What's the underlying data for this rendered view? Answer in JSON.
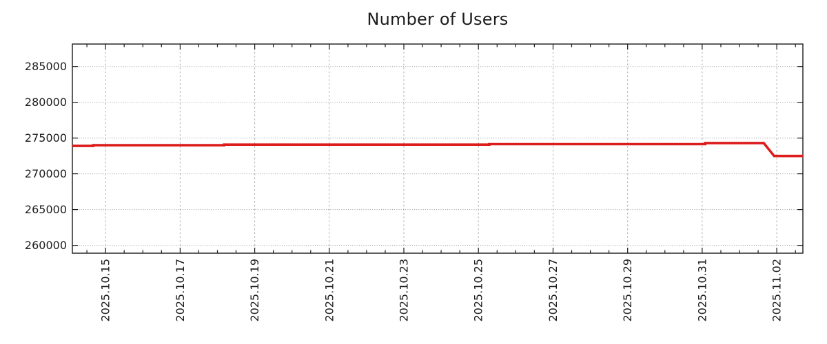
{
  "chart_data": {
    "type": "line",
    "title": "Number of Users",
    "xlabel": "",
    "ylabel": "",
    "x_unit": "days, 0 = 2025-10-14 00:00 (derived from visible date tick labels)",
    "xlim": [
      0.11,
      19.7
    ],
    "ylim": [
      258900,
      288150
    ],
    "x_major_ticks": [
      {
        "x": 1,
        "label": "2025.10.15"
      },
      {
        "x": 3,
        "label": "2025.10.17"
      },
      {
        "x": 5,
        "label": "2025.10.19"
      },
      {
        "x": 7,
        "label": "2025.10.21"
      },
      {
        "x": 9,
        "label": "2025.10.23"
      },
      {
        "x": 11,
        "label": "2025.10.25"
      },
      {
        "x": 13,
        "label": "2025.10.27"
      },
      {
        "x": 15,
        "label": "2025.10.29"
      },
      {
        "x": 17,
        "label": "2025.10.31"
      },
      {
        "x": 19,
        "label": "2025.11.02"
      }
    ],
    "x_minor_step": 0.5,
    "y_ticks": [
      {
        "y": 260000,
        "label": "260000"
      },
      {
        "y": 265000,
        "label": "265000"
      },
      {
        "y": 270000,
        "label": "270000"
      },
      {
        "y": 275000,
        "label": "275000"
      },
      {
        "y": 280000,
        "label": "280000"
      },
      {
        "y": 285000,
        "label": "285000"
      }
    ],
    "grid": {
      "show": true,
      "h_color": "#9a9a9a",
      "v_color": "#ababab",
      "style": "dotted"
    },
    "legend": "none",
    "axis_color": "#1a1a1a",
    "text_color": "#1c1c1c",
    "series": [
      {
        "name": "users",
        "color": "#dd1c1c",
        "line_width": 3.6,
        "points": [
          [
            0.11,
            273900
          ],
          [
            0.67,
            273900
          ],
          [
            0.67,
            274000
          ],
          [
            4.18,
            274000
          ],
          [
            4.18,
            274080
          ],
          [
            11.29,
            274080
          ],
          [
            11.29,
            274150
          ],
          [
            17.08,
            274150
          ],
          [
            17.08,
            274300
          ],
          [
            18.65,
            274300
          ],
          [
            18.93,
            272500
          ],
          [
            19.7,
            272500
          ]
        ]
      }
    ]
  }
}
